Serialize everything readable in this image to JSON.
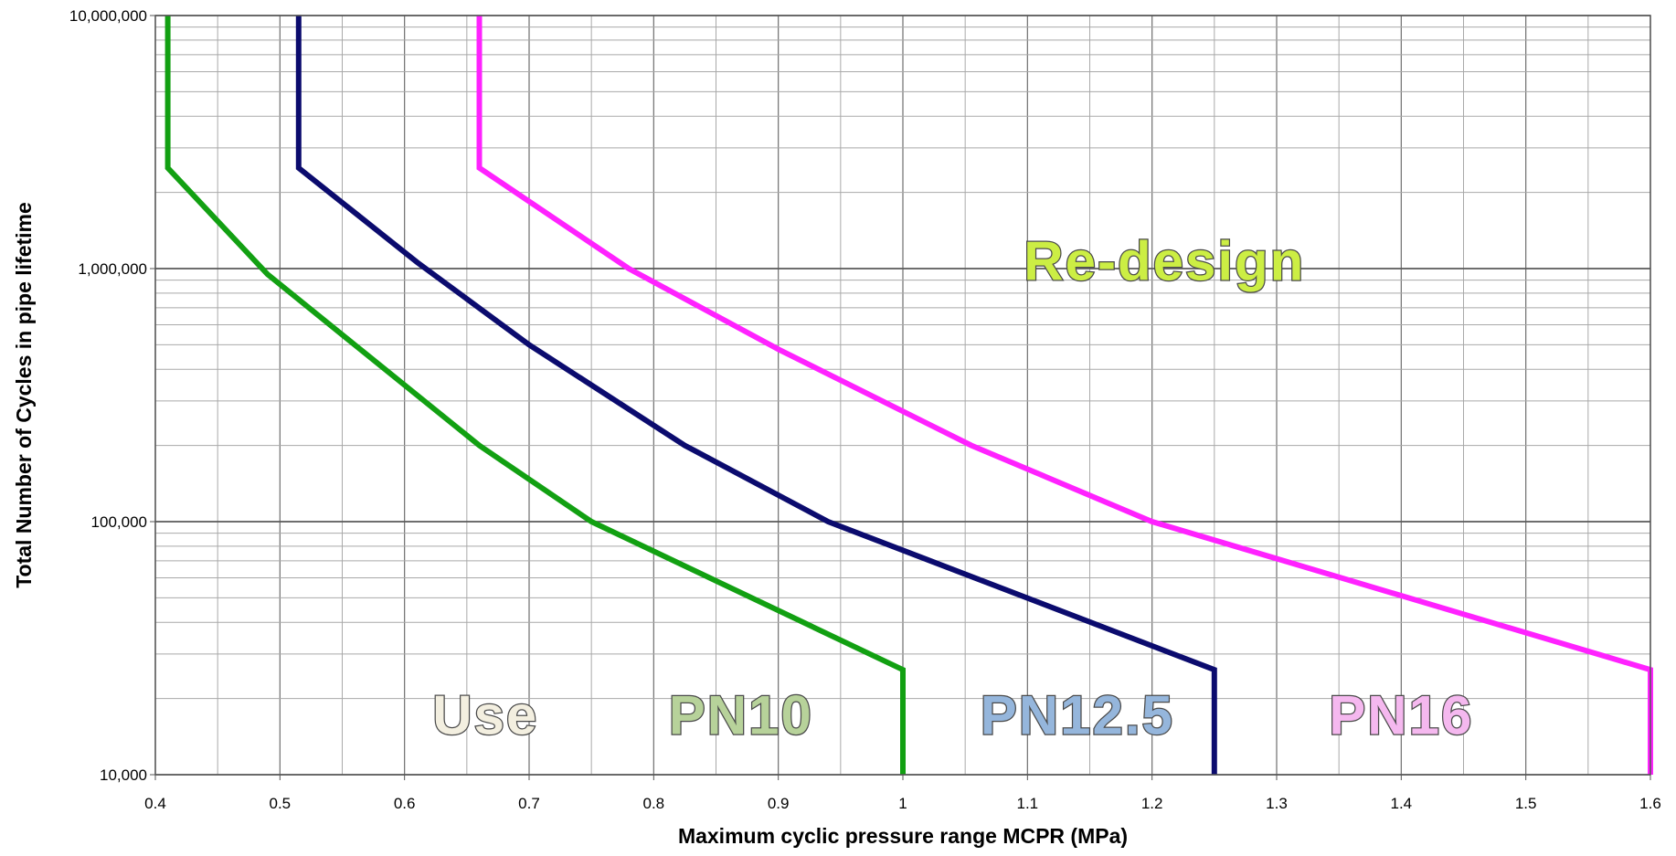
{
  "chart_data": {
    "type": "line",
    "title": "",
    "xlabel": "Maximum cyclic pressure range MCPR (MPa)",
    "ylabel": "Total Number of Cycles in pipe lifetime",
    "xlim": [
      0.4,
      1.6
    ],
    "ylim": [
      10000,
      10000000
    ],
    "yscale": "log",
    "grid": true,
    "x_ticks": [
      "0.4",
      "0.5",
      "0.6",
      "0.7",
      "0.8",
      "0.9",
      "1",
      "1.1",
      "1.2",
      "1.3",
      "1.4",
      "1.5",
      "1.6"
    ],
    "y_ticks": [
      "10,000",
      "100,000",
      "1,000,000",
      "10,000,000"
    ],
    "series": [
      {
        "color": "#12a012",
        "points": [
          [
            0.41,
            10000000
          ],
          [
            0.41,
            2500000
          ],
          [
            0.49,
            950000
          ],
          [
            0.56,
            500000
          ],
          [
            0.66,
            200000
          ],
          [
            0.75,
            100000
          ],
          [
            1.0,
            26000
          ],
          [
            1.0,
            10000
          ]
        ]
      },
      {
        "color": "#0b0b6e",
        "points": [
          [
            0.515,
            10000000
          ],
          [
            0.515,
            2500000
          ],
          [
            0.61,
            1060000
          ],
          [
            0.7,
            500000
          ],
          [
            0.825,
            200000
          ],
          [
            0.94,
            100000
          ],
          [
            1.25,
            26000
          ],
          [
            1.25,
            10000
          ]
        ]
      },
      {
        "color": "#ff22ff",
        "points": [
          [
            0.66,
            10000000
          ],
          [
            0.66,
            2500000
          ],
          [
            0.78,
            1000000
          ],
          [
            0.9,
            480000
          ],
          [
            1.055,
            200000
          ],
          [
            1.2,
            100000
          ],
          [
            1.6,
            26000
          ],
          [
            1.6,
            10000
          ]
        ]
      }
    ],
    "annotations": [
      {
        "text": "Re-design",
        "x": 1.21,
        "y": 900000,
        "color": "#ccee44"
      },
      {
        "text": "Use",
        "x": 0.665,
        "y": 14500,
        "color": "#f3efe0"
      },
      {
        "text": "PN10",
        "x": 0.87,
        "y": 14500,
        "color": "#b7d29a"
      },
      {
        "text": "PN12.5",
        "x": 1.14,
        "y": 14500,
        "color": "#95b6dc"
      },
      {
        "text": "PN16",
        "x": 1.4,
        "y": 14500,
        "color": "#f5b8ef"
      }
    ]
  }
}
